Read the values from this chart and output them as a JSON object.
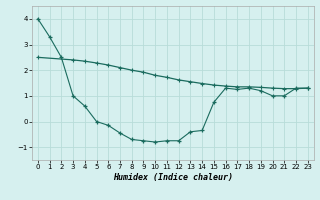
{
  "xlabel": "Humidex (Indice chaleur)",
  "background_color": "#d6f0ef",
  "grid_color": "#b8dcd9",
  "line_color": "#1a6b5e",
  "xlim": [
    -0.5,
    23.5
  ],
  "ylim": [
    -1.5,
    4.5
  ],
  "yticks": [
    -1,
    0,
    1,
    2,
    3,
    4
  ],
  "xticks": [
    0,
    1,
    2,
    3,
    4,
    5,
    6,
    7,
    8,
    9,
    10,
    11,
    12,
    13,
    14,
    15,
    16,
    17,
    18,
    19,
    20,
    21,
    22,
    23
  ],
  "series1_x": [
    0,
    1,
    2,
    3,
    4,
    5,
    6,
    7,
    8,
    9,
    10,
    11,
    12,
    13,
    14,
    15,
    16,
    17,
    18,
    19,
    20,
    21,
    22,
    23
  ],
  "series1_y": [
    4.0,
    3.3,
    2.5,
    1.0,
    0.6,
    0.0,
    -0.15,
    -0.45,
    -0.7,
    -0.75,
    -0.8,
    -0.75,
    -0.75,
    -0.4,
    -0.35,
    0.75,
    1.3,
    1.25,
    1.3,
    1.2,
    1.0,
    1.0,
    1.3,
    1.3
  ],
  "series2_x": [
    0,
    3,
    4,
    5,
    6,
    7,
    8,
    9,
    10,
    11,
    12,
    13,
    14,
    15,
    16,
    17,
    18,
    19,
    20,
    21,
    22,
    23
  ],
  "series2_y": [
    2.5,
    2.4,
    2.35,
    2.28,
    2.2,
    2.1,
    2.0,
    1.92,
    1.8,
    1.72,
    1.62,
    1.55,
    1.48,
    1.42,
    1.38,
    1.35,
    1.35,
    1.33,
    1.3,
    1.28,
    1.28,
    1.3
  ]
}
